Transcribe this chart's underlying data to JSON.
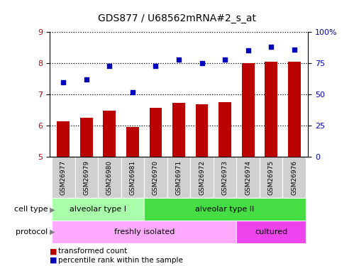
{
  "title": "GDS877 / U68562mRNA#2_s_at",
  "samples": [
    "GSM26977",
    "GSM26979",
    "GSM26980",
    "GSM26981",
    "GSM26970",
    "GSM26971",
    "GSM26972",
    "GSM26973",
    "GSM26974",
    "GSM26975",
    "GSM26976"
  ],
  "transformed_count": [
    6.15,
    6.25,
    6.48,
    5.95,
    6.58,
    6.72,
    6.68,
    6.75,
    8.0,
    8.05,
    8.05
  ],
  "percentile_rank": [
    60,
    62,
    73,
    52,
    73,
    78,
    75,
    78,
    85,
    88,
    86
  ],
  "ylim_left": [
    5,
    9
  ],
  "ylim_right": [
    0,
    100
  ],
  "yticks_left": [
    5,
    6,
    7,
    8,
    9
  ],
  "yticks_right": [
    0,
    25,
    50,
    75,
    100
  ],
  "ytick_labels_right": [
    "0",
    "25",
    "50",
    "75",
    "100%"
  ],
  "bar_color": "#bb0000",
  "dot_color": "#0000bb",
  "cell_type_groups": [
    {
      "label": "alveolar type I",
      "start": 0,
      "end": 4,
      "color": "#aaffaa"
    },
    {
      "label": "alveolar type II",
      "start": 4,
      "end": 11,
      "color": "#44dd44"
    }
  ],
  "protocol_groups": [
    {
      "label": "freshly isolated",
      "start": 0,
      "end": 8,
      "color": "#ffaaff"
    },
    {
      "label": "cultured",
      "start": 8,
      "end": 11,
      "color": "#ee44ee"
    }
  ],
  "legend_items": [
    {
      "label": "transformed count",
      "color": "#bb0000"
    },
    {
      "label": "percentile rank within the sample",
      "color": "#0000bb"
    }
  ],
  "cell_type_label": "cell type",
  "protocol_label": "protocol",
  "bar_width": 0.55,
  "tick_fontsize": 8,
  "sample_fontsize": 6.5,
  "annotation_fontsize": 8,
  "label_fontsize": 8
}
